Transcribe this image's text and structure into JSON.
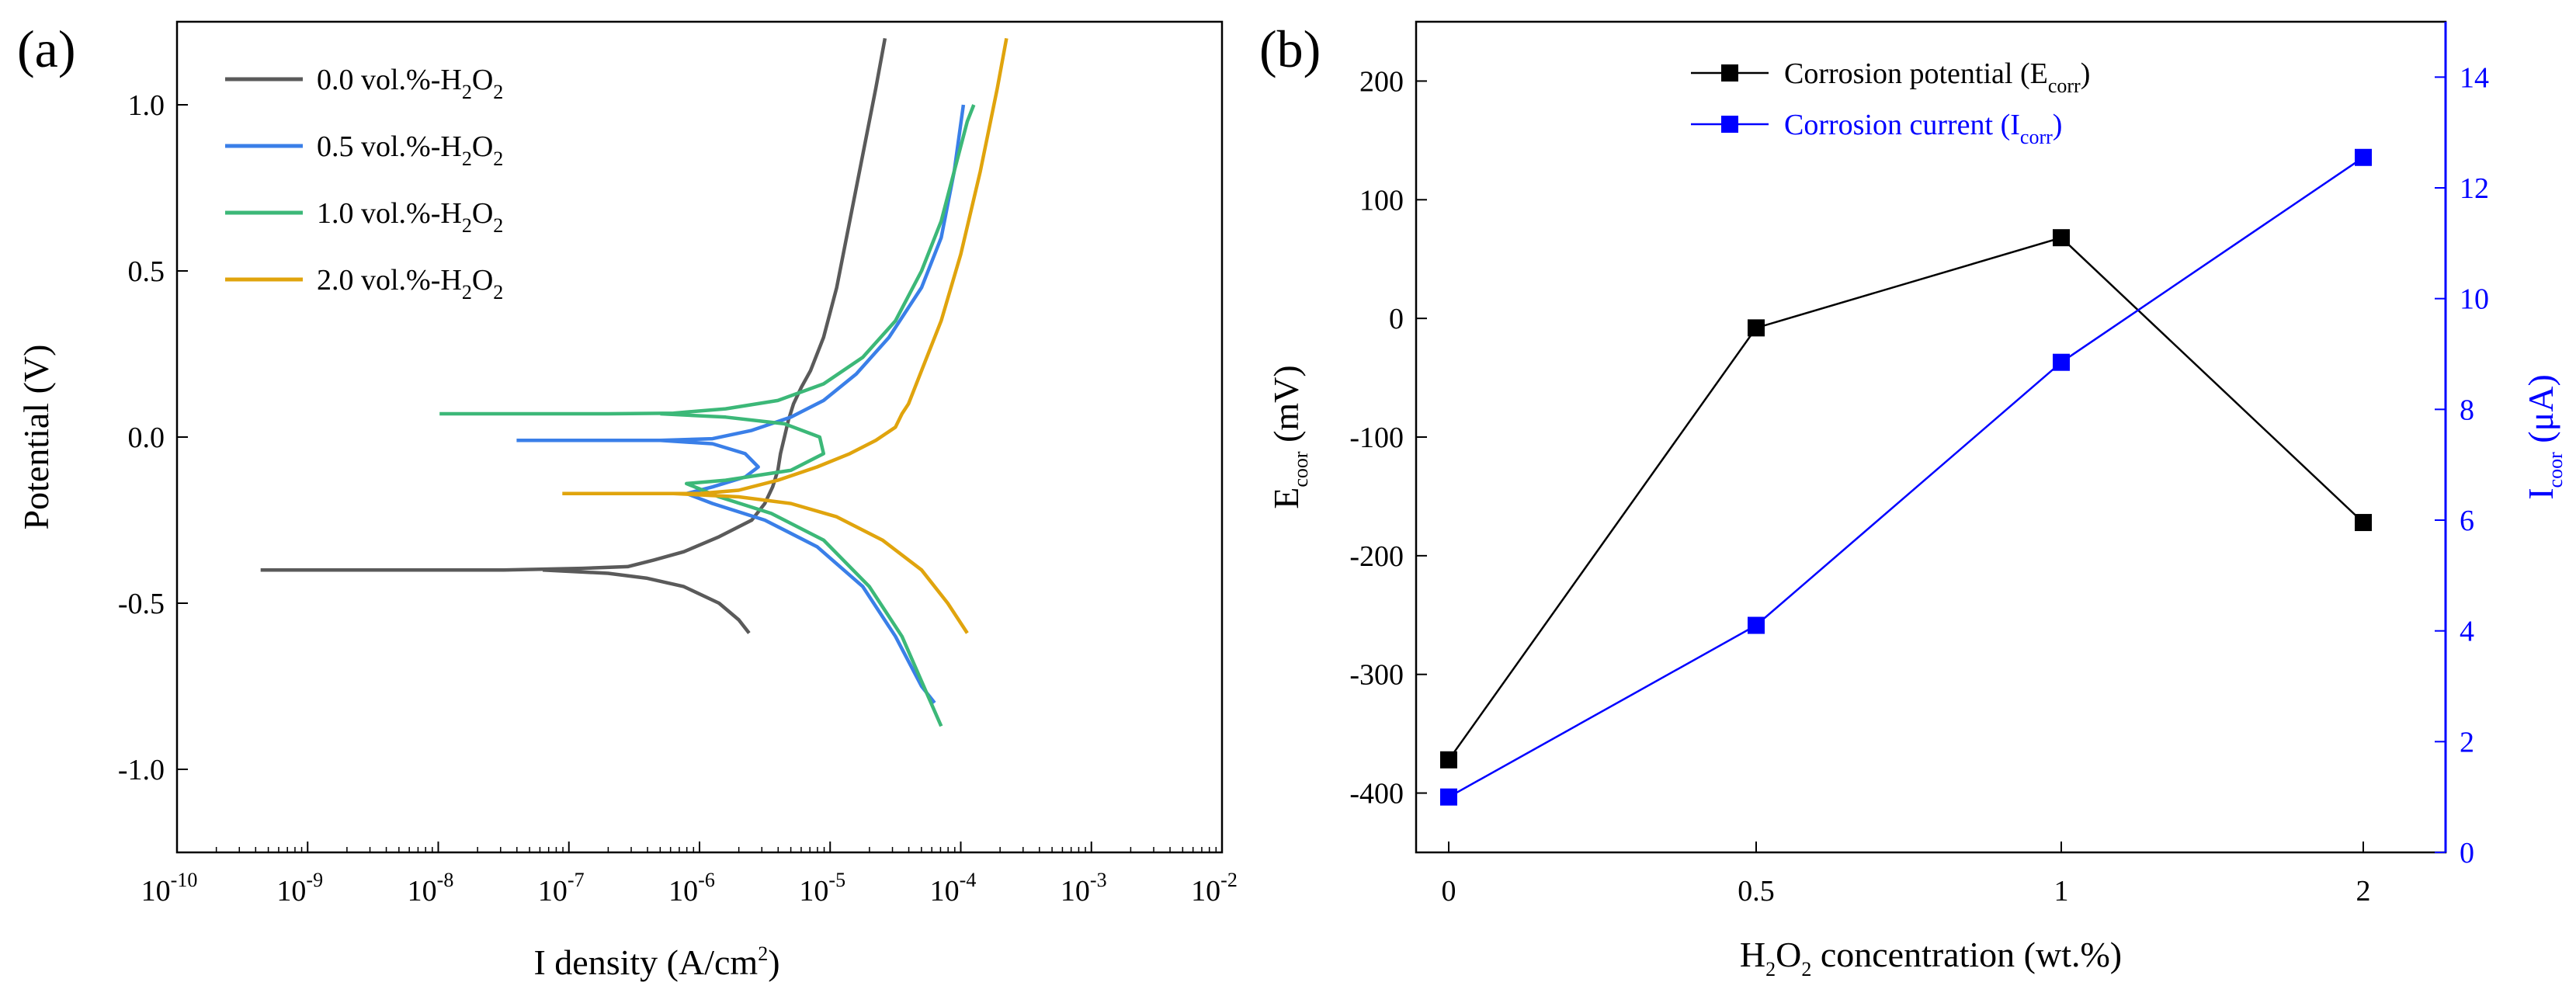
{
  "chart_data": [
    {
      "panel_label": "(a)",
      "type": "line",
      "xscale": "log",
      "xlabel": {
        "main": "I density (A/cm",
        "sup": "2",
        "tail": ")"
      },
      "ylabel": "Potential (V)",
      "xlim_exp": [
        -10,
        -2
      ],
      "ylim": [
        -1.25,
        1.25
      ],
      "x_ticks": [
        {
          "base": "10",
          "exp": "-10"
        },
        {
          "base": "10",
          "exp": "-9"
        },
        {
          "base": "10",
          "exp": "-8"
        },
        {
          "base": "10",
          "exp": "-7"
        },
        {
          "base": "10",
          "exp": "-6"
        },
        {
          "base": "10",
          "exp": "-5"
        },
        {
          "base": "10",
          "exp": "-4"
        },
        {
          "base": "10",
          "exp": "-3"
        },
        {
          "base": "10",
          "exp": "-2"
        }
      ],
      "y_ticks": [
        "-1.0",
        "-0.5",
        "0.0",
        "0.5",
        "1.0"
      ],
      "y_tick_values": [
        -1.0,
        -0.5,
        0.0,
        0.5,
        1.0
      ],
      "legend_position": "top-left",
      "series": [
        {
          "name": "0.0 vol.%-H2O2",
          "label": {
            "pre": "0.0 vol.%-H",
            "s1": "2",
            "mid": "O",
            "s2": "2"
          },
          "color": "#5a5a5a",
          "points": [
            [
              -9.36,
              -0.4
            ],
            [
              -8.5,
              -0.4
            ],
            [
              -7.5,
              -0.4
            ],
            [
              -6.9,
              -0.395
            ],
            [
              -6.55,
              -0.39
            ],
            [
              -6.35,
              -0.37
            ],
            [
              -6.12,
              -0.345
            ],
            [
              -5.85,
              -0.3
            ],
            [
              -5.6,
              -0.25
            ],
            [
              -5.5,
              -0.2
            ],
            [
              -5.44,
              -0.15
            ],
            [
              -5.4,
              -0.1
            ],
            [
              -5.38,
              -0.05
            ],
            [
              -5.35,
              0.0
            ],
            [
              -5.32,
              0.05
            ],
            [
              -5.28,
              0.1
            ],
            [
              -5.22,
              0.15
            ],
            [
              -5.15,
              0.2
            ],
            [
              -5.05,
              0.3
            ],
            [
              -4.95,
              0.45
            ],
            [
              -4.85,
              0.65
            ],
            [
              -4.75,
              0.85
            ],
            [
              -4.65,
              1.05
            ],
            [
              -4.58,
              1.2
            ]
          ],
          "branch": [
            [
              -7.2,
              -0.4
            ],
            [
              -6.7,
              -0.41
            ],
            [
              -6.4,
              -0.425
            ],
            [
              -6.12,
              -0.45
            ],
            [
              -5.85,
              -0.5
            ],
            [
              -5.7,
              -0.55
            ],
            [
              -5.62,
              -0.59
            ]
          ]
        },
        {
          "name": "0.5 vol.%-H2O2",
          "label": {
            "pre": "0.5 vol.%-H",
            "s1": "2",
            "mid": "O",
            "s2": "2"
          },
          "color": "#3a7fe8",
          "points": [
            [
              -7.4,
              -0.01
            ],
            [
              -6.8,
              -0.01
            ],
            [
              -6.3,
              -0.01
            ],
            [
              -5.9,
              -0.005
            ],
            [
              -5.6,
              0.02
            ],
            [
              -5.3,
              0.06
            ],
            [
              -5.05,
              0.11
            ],
            [
              -4.8,
              0.19
            ],
            [
              -4.55,
              0.3
            ],
            [
              -4.3,
              0.45
            ],
            [
              -4.15,
              0.6
            ],
            [
              -4.05,
              0.8
            ],
            [
              -3.98,
              1.0
            ]
          ],
          "branch": [
            [
              -6.3,
              -0.01
            ],
            [
              -5.9,
              -0.02
            ],
            [
              -5.65,
              -0.05
            ],
            [
              -5.55,
              -0.09
            ],
            [
              -5.65,
              -0.12
            ],
            [
              -5.9,
              -0.15
            ],
            [
              -6.1,
              -0.17
            ],
            [
              -5.9,
              -0.2
            ],
            [
              -5.5,
              -0.25
            ],
            [
              -5.1,
              -0.33
            ],
            [
              -4.75,
              -0.45
            ],
            [
              -4.5,
              -0.6
            ],
            [
              -4.3,
              -0.75
            ],
            [
              -4.2,
              -0.8
            ]
          ]
        },
        {
          "name": "1.0 vol.%-H2O2",
          "label": {
            "pre": "1.0 vol.%-H",
            "s1": "2",
            "mid": "O",
            "s2": "2"
          },
          "color": "#3cb878",
          "points": [
            [
              -7.99,
              0.07
            ],
            [
              -7.3,
              0.07
            ],
            [
              -6.7,
              0.07
            ],
            [
              -6.2,
              0.072
            ],
            [
              -5.8,
              0.085
            ],
            [
              -5.4,
              0.11
            ],
            [
              -5.05,
              0.16
            ],
            [
              -4.75,
              0.24
            ],
            [
              -4.5,
              0.35
            ],
            [
              -4.3,
              0.5
            ],
            [
              -4.15,
              0.65
            ],
            [
              -4.05,
              0.8
            ],
            [
              -3.95,
              0.95
            ],
            [
              -3.9,
              1.0
            ]
          ],
          "branch": [
            [
              -6.3,
              0.07
            ],
            [
              -5.8,
              0.06
            ],
            [
              -5.35,
              0.04
            ],
            [
              -5.08,
              0.0
            ],
            [
              -5.05,
              -0.05
            ],
            [
              -5.3,
              -0.1
            ],
            [
              -5.8,
              -0.13
            ],
            [
              -6.1,
              -0.14
            ],
            [
              -5.85,
              -0.18
            ],
            [
              -5.45,
              -0.23
            ],
            [
              -5.05,
              -0.31
            ],
            [
              -4.7,
              -0.45
            ],
            [
              -4.45,
              -0.6
            ],
            [
              -4.25,
              -0.78
            ],
            [
              -4.15,
              -0.87
            ]
          ]
        },
        {
          "name": "2.0 vol.%-H2O2",
          "label": {
            "pre": "2.0 vol.%-H",
            "s1": "2",
            "mid": "O",
            "s2": "2"
          },
          "color": "#e0a40d",
          "points": [
            [
              -7.05,
              -0.17
            ],
            [
              -6.5,
              -0.17
            ],
            [
              -6.0,
              -0.17
            ],
            [
              -5.7,
              -0.16
            ],
            [
              -5.4,
              -0.13
            ],
            [
              -5.1,
              -0.09
            ],
            [
              -4.85,
              -0.05
            ],
            [
              -4.65,
              -0.01
            ],
            [
              -4.5,
              0.03
            ],
            [
              -4.45,
              0.07
            ],
            [
              -4.4,
              0.1
            ],
            [
              -4.3,
              0.2
            ],
            [
              -4.15,
              0.35
            ],
            [
              -4.0,
              0.55
            ],
            [
              -3.85,
              0.8
            ],
            [
              -3.72,
              1.05
            ],
            [
              -3.65,
              1.2
            ]
          ],
          "branch": [
            [
              -6.2,
              -0.17
            ],
            [
              -5.7,
              -0.18
            ],
            [
              -5.3,
              -0.2
            ],
            [
              -4.95,
              -0.24
            ],
            [
              -4.6,
              -0.31
            ],
            [
              -4.3,
              -0.4
            ],
            [
              -4.1,
              -0.5
            ],
            [
              -3.95,
              -0.59
            ]
          ]
        }
      ]
    },
    {
      "panel_label": "(b)",
      "type": "line",
      "xlabel": {
        "pre": "H",
        "sub": "2",
        "mid": "O",
        "sub2": "2",
        "tail": " concentration (wt.%)"
      },
      "ylabel": {
        "pre": "E",
        "sub": "coor",
        "tail": " (mV)"
      },
      "y2label": {
        "pre": "I",
        "sub": "coor",
        "tail": " (μA)"
      },
      "categories": [
        "0",
        "0.5",
        "1",
        "2"
      ],
      "ylim": [
        -450,
        250
      ],
      "y_ticks": [
        "-400",
        "-300",
        "-200",
        "-100",
        "0",
        "100",
        "200"
      ],
      "y_tick_values": [
        -400,
        -300,
        -200,
        -100,
        0,
        100,
        200
      ],
      "y2lim": [
        0,
        15
      ],
      "y2_ticks": [
        "0",
        "2",
        "4",
        "6",
        "8",
        "10",
        "12",
        "14"
      ],
      "y2_tick_values": [
        0,
        2,
        4,
        6,
        8,
        10,
        12,
        14
      ],
      "legend_position": "top-center",
      "series": [
        {
          "name": "Corrosion potential (Ecorr)",
          "label": {
            "pre": "Corrosion potential (E",
            "sub": "corr",
            "tail": ")"
          },
          "color": "#000000",
          "axis": "left",
          "values": [
            -372,
            -8,
            68,
            -172
          ]
        },
        {
          "name": "Corrosion current (Icorr)",
          "label": {
            "pre": "Corrosion current (I",
            "sub": "corr",
            "tail": ")"
          },
          "color": "#0000ff",
          "axis": "right",
          "values": [
            1.0,
            4.1,
            8.85,
            12.55
          ]
        }
      ]
    }
  ]
}
